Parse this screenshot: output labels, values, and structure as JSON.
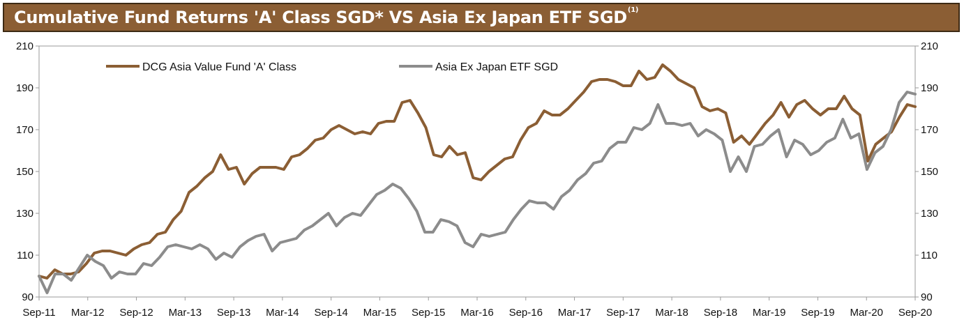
{
  "header": {
    "title": "Cumulative Fund Returns 'A' Class SGD* VS Asia Ex Japan ETF SGD",
    "title_sup": "(1)",
    "background": "#8b5e34"
  },
  "chart_data": {
    "type": "line",
    "title": "Cumulative Fund Returns 'A' Class SGD* VS Asia Ex Japan ETF SGD",
    "xlabel": "",
    "ylabel": "",
    "ylim": [
      90,
      210
    ],
    "y_ticks": [
      90,
      110,
      130,
      150,
      170,
      190,
      210
    ],
    "y2_ticks": [
      90,
      110,
      130,
      150,
      170,
      190,
      210
    ],
    "x_tick_labels": [
      "Sep-11",
      "Mar-12",
      "Sep-12",
      "Mar-13",
      "Sep-13",
      "Mar-14",
      "Sep-14",
      "Mar-15",
      "Sep-15",
      "Mar-16",
      "Sep-16",
      "Mar-17",
      "Sep-17",
      "Mar-18",
      "Sep-18",
      "Mar-19",
      "Sep-19",
      "Mar-20",
      "Sep-20"
    ],
    "legend_position": "top-left",
    "grid": false,
    "series": [
      {
        "name": "DCG Asia Value Fund 'A' Class",
        "color": "#8b5e34",
        "values": [
          100,
          99,
          103,
          101,
          101,
          102,
          106,
          111,
          112,
          112,
          111,
          110,
          113,
          115,
          116,
          120,
          121,
          127,
          131,
          140,
          143,
          147,
          150,
          158,
          151,
          152,
          144,
          149,
          152,
          152,
          152,
          151,
          157,
          158,
          161,
          165,
          166,
          170,
          172,
          170,
          168,
          169,
          168,
          173,
          174,
          174,
          183,
          184,
          178,
          171,
          158,
          157,
          162,
          158,
          159,
          147,
          146,
          150,
          153,
          156,
          157,
          165,
          171,
          173,
          179,
          177,
          177,
          180,
          184,
          188,
          193,
          194,
          194,
          193,
          191,
          191,
          198,
          194,
          195,
          201,
          198,
          194,
          192,
          190,
          181,
          179,
          180,
          178,
          164,
          167,
          163,
          168,
          173,
          177,
          183,
          176,
          182,
          184,
          180,
          177,
          180,
          180,
          186,
          180,
          177,
          155,
          163,
          166,
          169,
          176,
          182,
          181
        ],
        "start_label": "Sep-11",
        "end_label": "Sep-20"
      },
      {
        "name": "Asia Ex Japan ETF SGD",
        "color": "#8c8c8c",
        "values": [
          100,
          92,
          101,
          101,
          98,
          104,
          110,
          107,
          105,
          99,
          102,
          101,
          101,
          106,
          105,
          109,
          114,
          115,
          114,
          113,
          115,
          113,
          108,
          111,
          109,
          114,
          117,
          119,
          120,
          112,
          116,
          117,
          118,
          122,
          124,
          127,
          130,
          124,
          128,
          130,
          129,
          134,
          139,
          141,
          144,
          142,
          137,
          131,
          121,
          121,
          127,
          126,
          124,
          116,
          114,
          120,
          119,
          120,
          121,
          127,
          132,
          136,
          135,
          135,
          132,
          138,
          141,
          146,
          149,
          154,
          155,
          161,
          164,
          164,
          171,
          170,
          173,
          182,
          173,
          173,
          172,
          173,
          167,
          170,
          168,
          165,
          150,
          157,
          150,
          162,
          163,
          167,
          170,
          157,
          165,
          163,
          158,
          160,
          164,
          166,
          175,
          166,
          168,
          151,
          159,
          162,
          170,
          183,
          188,
          187
        ],
        "start_label": "Sep-11",
        "end_label": "Sep-20"
      }
    ]
  }
}
